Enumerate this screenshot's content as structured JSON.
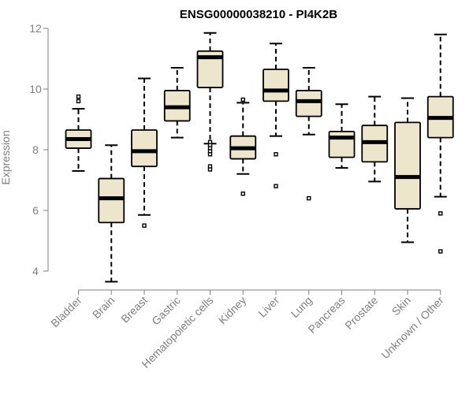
{
  "chart_data": {
    "type": "box",
    "title": "ENSG00000038210 - PI4K2B",
    "xlabel": "",
    "ylabel": "Expression",
    "ylim": [
      3.6,
      12.2
    ],
    "yticks": [
      "4",
      "6",
      "8",
      "10",
      "12"
    ],
    "ytick_values": [
      4,
      6,
      8,
      10,
      12
    ],
    "grid": false,
    "box_fill": "#ede6cc",
    "box_stroke": "#000000",
    "axis_color": "#7f7f7f",
    "categories": [
      "Bladder",
      "Brain",
      "Breast",
      "Gastric",
      "Hematopoietic cells",
      "Kidney",
      "Liver",
      "Lung",
      "Pancreas",
      "Prostate",
      "Skin",
      "Unknown / Other"
    ],
    "boxes": [
      {
        "category": "Bladder",
        "whisker_low": 7.3,
        "q1": 8.05,
        "median": 8.35,
        "q3": 8.65,
        "whisker_high": 9.35,
        "outliers": [
          9.6,
          9.75
        ]
      },
      {
        "category": "Brain",
        "whisker_low": 3.65,
        "q1": 5.6,
        "median": 6.4,
        "q3": 7.05,
        "whisker_high": 8.15,
        "outliers": []
      },
      {
        "category": "Breast",
        "whisker_low": 5.85,
        "q1": 7.45,
        "median": 7.95,
        "q3": 8.65,
        "whisker_high": 10.35,
        "outliers": [
          5.5
        ]
      },
      {
        "category": "Gastric",
        "whisker_low": 8.4,
        "q1": 8.95,
        "median": 9.4,
        "q3": 9.95,
        "whisker_high": 10.7,
        "outliers": []
      },
      {
        "category": "Hematopoietic cells",
        "whisker_low": 8.2,
        "q1": 10.05,
        "median": 11.05,
        "q3": 11.25,
        "whisker_high": 11.85,
        "outliers": [
          8.25,
          8.15,
          8.05,
          7.95,
          7.85,
          7.45,
          7.35
        ]
      },
      {
        "category": "Kidney",
        "whisker_low": 7.2,
        "q1": 7.7,
        "median": 8.05,
        "q3": 8.45,
        "whisker_high": 9.55,
        "outliers": [
          9.65,
          6.55
        ]
      },
      {
        "category": "Liver",
        "whisker_low": 8.45,
        "q1": 9.6,
        "median": 9.95,
        "q3": 10.65,
        "whisker_high": 11.5,
        "outliers": [
          7.85,
          6.8
        ]
      },
      {
        "category": "Lung",
        "whisker_low": 8.5,
        "q1": 9.1,
        "median": 9.6,
        "q3": 9.95,
        "whisker_high": 10.7,
        "outliers": [
          6.4
        ]
      },
      {
        "category": "Pancreas",
        "whisker_low": 7.4,
        "q1": 7.75,
        "median": 8.4,
        "q3": 8.6,
        "whisker_high": 9.5,
        "outliers": []
      },
      {
        "category": "Prostate",
        "whisker_low": 6.95,
        "q1": 7.6,
        "median": 8.25,
        "q3": 8.8,
        "whisker_high": 9.75,
        "outliers": []
      },
      {
        "category": "Skin",
        "whisker_low": 4.95,
        "q1": 6.05,
        "median": 7.1,
        "q3": 8.9,
        "whisker_high": 9.7,
        "outliers": []
      },
      {
        "category": "Unknown / Other",
        "whisker_low": 6.45,
        "q1": 8.4,
        "median": 9.05,
        "q3": 9.75,
        "whisker_high": 11.8,
        "outliers": [
          5.9,
          4.65
        ]
      }
    ]
  }
}
